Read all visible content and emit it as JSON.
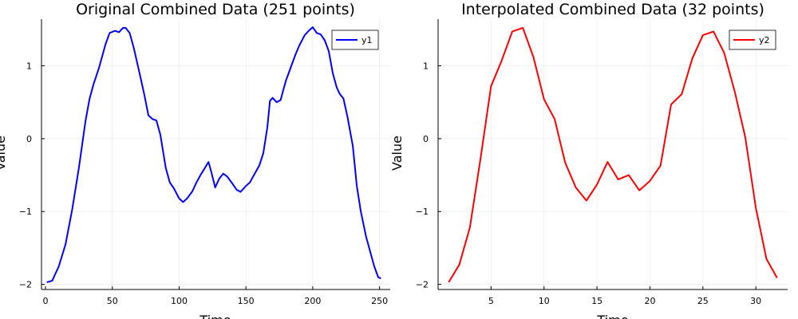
{
  "chart_data": [
    {
      "type": "line",
      "title": "Original Combined Data (251 points)",
      "xlabel": "Time",
      "ylabel": "Value",
      "xlim": [
        -3,
        258
      ],
      "ylim": [
        -2.07,
        1.64
      ],
      "xticks": [
        0,
        50,
        100,
        150,
        200,
        250
      ],
      "yticks": [
        -2,
        -1,
        0,
        1
      ],
      "grid": true,
      "legend_position": "top-right",
      "series": [
        {
          "name": "y1",
          "color": "#0000ff",
          "x": [
            1,
            5,
            10,
            15,
            20,
            25,
            30,
            33,
            36,
            40,
            45,
            48,
            52,
            55,
            58,
            60,
            63,
            66,
            70,
            74,
            77,
            80,
            83,
            86,
            90,
            93,
            96,
            100,
            103,
            106,
            110,
            113,
            116,
            120,
            122,
            124,
            127,
            130,
            133,
            136,
            140,
            143,
            146,
            150,
            153,
            156,
            160,
            163,
            166,
            168,
            170,
            173,
            176,
            178,
            180,
            184,
            187,
            190,
            194,
            197,
            200,
            203,
            206,
            209,
            212,
            215,
            218,
            220,
            223,
            226,
            230,
            233,
            236,
            240,
            243,
            246,
            249,
            251
          ],
          "y": [
            -1.97,
            -1.95,
            -1.75,
            -1.45,
            -0.97,
            -0.4,
            0.25,
            0.55,
            0.75,
            0.97,
            1.3,
            1.45,
            1.48,
            1.46,
            1.52,
            1.52,
            1.45,
            1.25,
            0.93,
            0.6,
            0.32,
            0.27,
            0.25,
            0.05,
            -0.4,
            -0.6,
            -0.68,
            -0.82,
            -0.87,
            -0.82,
            -0.72,
            -0.6,
            -0.5,
            -0.38,
            -0.32,
            -0.45,
            -0.67,
            -0.55,
            -0.48,
            -0.52,
            -0.62,
            -0.7,
            -0.73,
            -0.65,
            -0.6,
            -0.5,
            -0.37,
            -0.2,
            0.15,
            0.52,
            0.56,
            0.5,
            0.53,
            0.67,
            0.8,
            1.0,
            1.15,
            1.28,
            1.42,
            1.48,
            1.53,
            1.45,
            1.43,
            1.35,
            1.2,
            0.9,
            0.7,
            0.62,
            0.55,
            0.3,
            -0.1,
            -0.65,
            -1.0,
            -1.35,
            -1.55,
            -1.75,
            -1.9,
            -1.92
          ]
        }
      ]
    },
    {
      "type": "line",
      "title": "Interpolated Combined Data (32 points)",
      "xlabel": "Time",
      "ylabel": "Value",
      "xlim": [
        0,
        33
      ],
      "ylim": [
        -2.07,
        1.64
      ],
      "xticks": [
        5,
        10,
        15,
        20,
        25,
        30
      ],
      "yticks": [
        -2,
        -1,
        0,
        1
      ],
      "grid": true,
      "legend_position": "top-right",
      "series": [
        {
          "name": "y2",
          "color": "#ff0000",
          "x": [
            1,
            2,
            3,
            4,
            5,
            6,
            7,
            8,
            9,
            10,
            11,
            12,
            13,
            14,
            15,
            16,
            17,
            18,
            19,
            20,
            21,
            22,
            23,
            24,
            25,
            26,
            27,
            28,
            29,
            30,
            31,
            32
          ],
          "y": [
            -1.97,
            -1.73,
            -1.22,
            -0.28,
            0.72,
            1.07,
            1.47,
            1.52,
            1.12,
            0.54,
            0.27,
            -0.33,
            -0.67,
            -0.85,
            -0.63,
            -0.32,
            -0.56,
            -0.5,
            -0.71,
            -0.58,
            -0.37,
            0.47,
            0.61,
            1.1,
            1.42,
            1.47,
            1.18,
            0.65,
            0.02,
            -0.95,
            -1.65,
            -1.91
          ]
        }
      ]
    }
  ]
}
